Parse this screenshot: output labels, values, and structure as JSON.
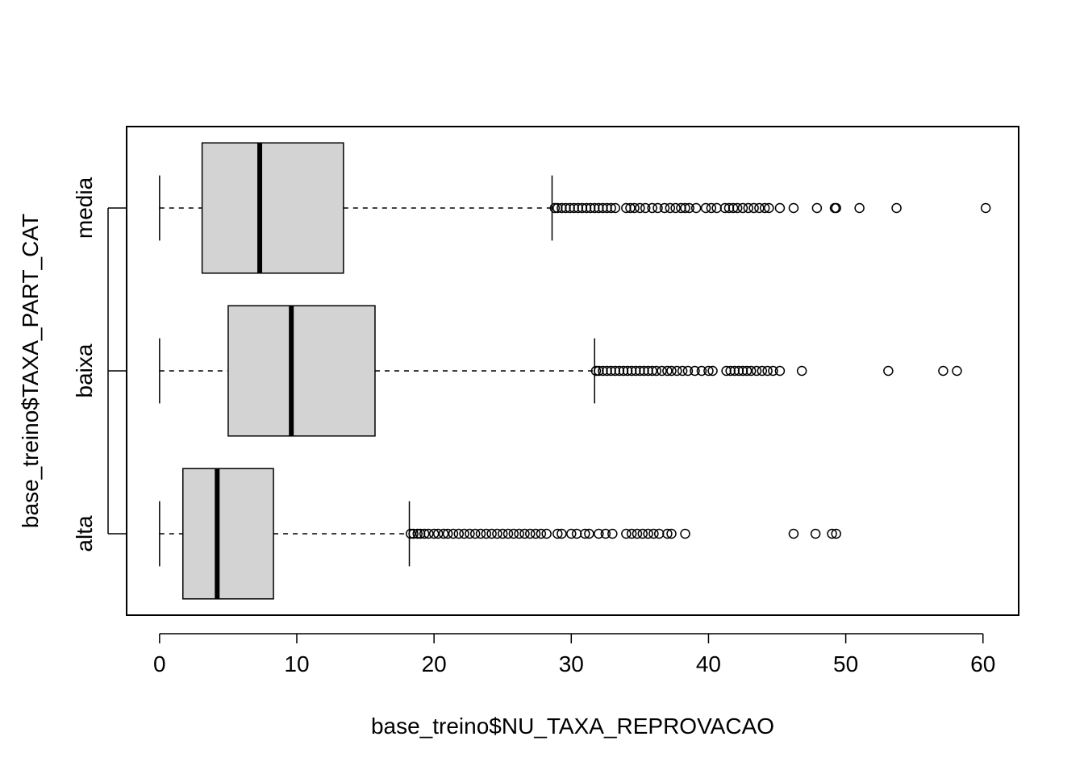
{
  "chart_data": {
    "type": "boxplot",
    "orientation": "horizontal",
    "title": "",
    "xlabel": "base_treino$NU_TAXA_REPROVACAO",
    "ylabel": "base_treino$TAXA_PART_CAT",
    "xlim": [
      -2.4,
      62.6
    ],
    "x_ticks": [
      0,
      10,
      20,
      30,
      40,
      50,
      60
    ],
    "x_tick_labels": [
      "0",
      "10",
      "20",
      "30",
      "40",
      "50",
      "60"
    ],
    "categories": [
      "alta",
      "baixa",
      "media"
    ],
    "box_color": "#d3d3d3",
    "line_color": "#000000",
    "grid": false,
    "series": [
      {
        "category": "alta",
        "whisker_low": 0,
        "q1": 1.7,
        "median": 4.2,
        "q3": 8.3,
        "whisker_high": 18.2,
        "outliers": [
          18.3,
          18.5,
          18.8,
          19.0,
          19.3,
          19.6,
          20.0,
          20.3,
          20.7,
          21.0,
          21.4,
          21.8,
          22.2,
          22.6,
          23.0,
          23.4,
          23.8,
          24.2,
          24.6,
          25.0,
          25.4,
          25.8,
          26.2,
          26.6,
          27.0,
          27.4,
          27.8,
          28.2,
          29.0,
          29.3,
          30.0,
          30.4,
          31.0,
          31.3,
          32.0,
          32.5,
          33.0,
          34.0,
          34.4,
          34.8,
          35.2,
          35.6,
          36.0,
          36.4,
          37.0,
          37.3,
          38.3,
          46.2,
          47.8,
          49.0,
          49.3
        ]
      },
      {
        "category": "baixa",
        "whisker_low": 0,
        "q1": 5.0,
        "median": 9.6,
        "q3": 15.7,
        "whisker_high": 31.7,
        "outliers": [
          31.8,
          32.0,
          32.3,
          32.6,
          32.9,
          33.2,
          33.5,
          33.8,
          34.1,
          34.4,
          34.7,
          35.0,
          35.3,
          35.6,
          35.9,
          36.2,
          36.6,
          37.0,
          37.3,
          37.7,
          38.1,
          38.5,
          39.0,
          39.5,
          40.0,
          40.3,
          41.3,
          41.6,
          41.9,
          42.2,
          42.5,
          42.8,
          43.1,
          43.5,
          43.9,
          44.3,
          44.7,
          45.2,
          46.8,
          53.1,
          57.1,
          58.1
        ]
      },
      {
        "category": "media",
        "whisker_low": 0,
        "q1": 3.1,
        "median": 7.3,
        "q3": 13.4,
        "whisker_high": 28.6,
        "outliers": [
          28.8,
          29.0,
          29.3,
          29.6,
          29.9,
          30.2,
          30.5,
          30.8,
          31.1,
          31.4,
          31.7,
          32.0,
          32.3,
          32.6,
          32.9,
          33.2,
          34.0,
          34.3,
          34.6,
          35.0,
          35.4,
          35.9,
          36.3,
          36.8,
          37.2,
          37.6,
          38.0,
          38.3,
          38.6,
          39.1,
          39.8,
          40.2,
          40.6,
          41.2,
          41.5,
          41.8,
          42.1,
          42.5,
          42.9,
          43.3,
          43.7,
          44.1,
          44.4,
          45.2,
          46.2,
          47.9,
          49.2,
          49.3,
          51.0,
          53.7,
          60.2
        ]
      }
    ]
  }
}
